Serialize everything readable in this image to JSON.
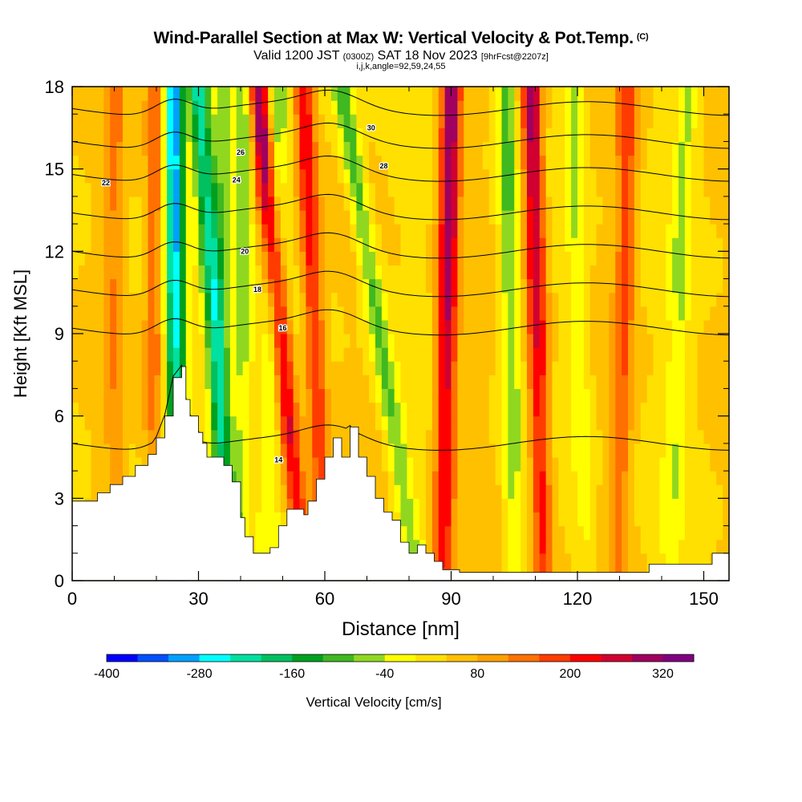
{
  "header": {
    "title": "Wind-Parallel Section at Max W: Vertical Velocity & Pot.Temp.",
    "copyright": "(C)",
    "valid_prefix": "Valid 1200 JST",
    "utc": "(0300Z)",
    "valid_date": "SAT 18 Nov 2023",
    "forecast": "[9hrFcst@2207z]",
    "grid_info": "i,j,k,angle=92,59,24,55"
  },
  "chart_data": {
    "type": "heatmap",
    "title": "Wind-Parallel Section at Max W: Vertical Velocity & Pot.Temp.",
    "xlabel": "Distance [nm]",
    "ylabel": "Height [Kft MSL]",
    "xlim": [
      0,
      156
    ],
    "ylim": [
      0,
      18
    ],
    "x_ticks": [
      "0",
      "30",
      "60",
      "90",
      "120",
      "150"
    ],
    "y_ticks": [
      "0",
      "3",
      "6",
      "9",
      "12",
      "15",
      "18"
    ],
    "colorbar": {
      "label": "Vertical Velocity [cm/s]",
      "tick_labels": [
        "-400",
        "-280",
        "-160",
        "-40",
        "80",
        "200",
        "320"
      ],
      "colors": [
        "#0000ff",
        "#0050ff",
        "#00a0ff",
        "#00ffff",
        "#00e0a0",
        "#00c060",
        "#00a020",
        "#40b820",
        "#90d820",
        "#ffff00",
        "#ffe000",
        "#ffc000",
        "#ffa000",
        "#ff7000",
        "#ff3c00",
        "#ff0000",
        "#d00030",
        "#a00060",
        "#800080"
      ]
    },
    "terrain": [
      [
        0,
        2.9
      ],
      [
        5,
        2.9
      ],
      [
        6,
        3.2
      ],
      [
        9,
        3.5
      ],
      [
        12,
        3.8
      ],
      [
        15,
        4.2
      ],
      [
        18,
        4.6
      ],
      [
        20,
        5.2
      ],
      [
        22,
        6.0
      ],
      [
        24,
        7.4
      ],
      [
        26,
        7.8
      ],
      [
        27,
        6.6
      ],
      [
        28,
        6.0
      ],
      [
        30,
        5.4
      ],
      [
        31,
        5.0
      ],
      [
        32,
        4.5
      ],
      [
        34,
        4.5
      ],
      [
        36,
        4.2
      ],
      [
        38,
        3.6
      ],
      [
        40,
        2.3
      ],
      [
        41,
        1.6
      ],
      [
        43,
        1.0
      ],
      [
        45,
        1.0
      ],
      [
        47,
        1.2
      ],
      [
        49,
        2.0
      ],
      [
        51,
        2.6
      ],
      [
        53,
        2.6
      ],
      [
        55,
        2.4
      ],
      [
        56,
        2.9
      ],
      [
        58,
        3.7
      ],
      [
        60,
        4.5
      ],
      [
        62,
        5.2
      ],
      [
        64,
        4.5
      ],
      [
        66,
        5.6
      ],
      [
        68,
        4.5
      ],
      [
        70,
        3.8
      ],
      [
        72,
        3.0
      ],
      [
        74,
        2.5
      ],
      [
        76,
        2.2
      ],
      [
        78,
        1.4
      ],
      [
        80,
        1.0
      ],
      [
        82,
        1.3
      ],
      [
        84,
        1.0
      ],
      [
        86,
        0.7
      ],
      [
        88,
        0.4
      ],
      [
        92,
        0.3
      ],
      [
        110,
        0.3
      ],
      [
        120,
        0.3
      ],
      [
        130,
        0.3
      ],
      [
        135,
        0.3
      ],
      [
        137,
        0.6
      ],
      [
        150,
        0.6
      ],
      [
        152,
        1.0
      ],
      [
        156,
        1.0
      ]
    ],
    "w_streaks": [
      {
        "x_top": 24.0,
        "x_bottom": 25.0,
        "sign": -1,
        "strength": 1.0
      },
      {
        "x_top": 30.0,
        "x_bottom": 38.0,
        "sign": -1,
        "strength": 0.75
      },
      {
        "x_top": 36.0,
        "x_bottom": 34.0,
        "sign": -1,
        "strength": 0.35
      },
      {
        "x_top": 41.0,
        "x_bottom": 40.0,
        "sign": -1,
        "strength": 0.38
      },
      {
        "x_top": 49.0,
        "x_bottom": 46.0,
        "sign": -1,
        "strength": 0.3
      },
      {
        "x_top": 64.0,
        "x_bottom": 82.0,
        "sign": -1,
        "strength": 0.45
      },
      {
        "x_top": 103.0,
        "x_bottom": 105.0,
        "sign": -1,
        "strength": 0.4
      },
      {
        "x_top": 119.0,
        "x_bottom": 122.0,
        "sign": -1,
        "strength": 0.25
      },
      {
        "x_top": 146.0,
        "x_bottom": 142.0,
        "sign": -1,
        "strength": 0.25
      },
      {
        "x_top": 44.0,
        "x_bottom": 55.0,
        "sign": 1,
        "strength": 0.85
      },
      {
        "x_top": 55.0,
        "x_bottom": 60.0,
        "sign": 1,
        "strength": 0.6
      },
      {
        "x_top": 90.0,
        "x_bottom": 88.0,
        "sign": 1,
        "strength": 0.85
      },
      {
        "x_top": 109.0,
        "x_bottom": 112.0,
        "sign": 1,
        "strength": 0.8
      },
      {
        "x_top": 132.0,
        "x_bottom": 130.0,
        "sign": 1,
        "strength": 0.4
      },
      {
        "x_top": 20.0,
        "x_bottom": 19.0,
        "sign": 1,
        "strength": 0.4
      },
      {
        "x_top": 10.0,
        "x_bottom": 10.0,
        "sign": 1,
        "strength": 0.25
      }
    ],
    "theta_contours": [
      {
        "label": "14",
        "base": 5.0,
        "lx": 49,
        "ly": 4.4
      },
      {
        "label": "16",
        "base": 9.2,
        "lx": 50,
        "ly": 9.2
      },
      {
        "label": "18",
        "base": 10.6,
        "lx": 44,
        "ly": 10.6
      },
      {
        "label": "20",
        "base": 12.0,
        "lx": 41,
        "ly": 12.0
      },
      {
        "label": "22",
        "base": 13.4,
        "lx": 8,
        "ly": 14.5
      },
      {
        "label": "24",
        "base": 14.8,
        "lx": 39,
        "ly": 14.6
      },
      {
        "label": "26",
        "base": 16.0,
        "lx": 40,
        "ly": 15.6
      },
      {
        "label": "28",
        "base": 17.2,
        "lx": 74,
        "ly": 15.1
      },
      {
        "label": "30",
        "base": 18.4,
        "lx": 71,
        "ly": 16.5
      }
    ]
  }
}
